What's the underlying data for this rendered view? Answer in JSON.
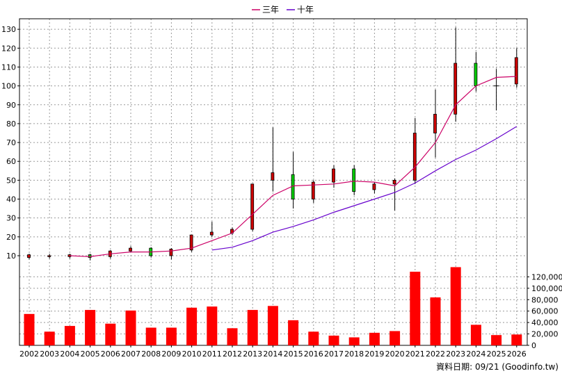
{
  "chart_data": {
    "type": "candlestick",
    "legend": {
      "placement": "top-center",
      "items": [
        {
          "name": "三年",
          "color": "#cc0066"
        },
        {
          "name": "十年",
          "color": "#6600cc"
        }
      ]
    },
    "categories": [
      "2002",
      "2003",
      "2004",
      "2005",
      "2006",
      "2007",
      "2008",
      "2009",
      "2010",
      "2011",
      "2012",
      "2013",
      "2014",
      "2015",
      "2016",
      "2017",
      "2018",
      "2019",
      "2020",
      "2021",
      "2022",
      "2023",
      "2024",
      "2025",
      "2026"
    ],
    "price_axis": {
      "ylim": [
        3,
        133
      ],
      "ticks": [
        10,
        20,
        30,
        40,
        50,
        60,
        70,
        80,
        90,
        100,
        110,
        120,
        130
      ]
    },
    "volume_axis": {
      "ylim": [
        0,
        140000
      ],
      "ticks": [
        0,
        20000,
        40000,
        60000,
        80000,
        100000,
        120000
      ],
      "tick_labels": [
        "0",
        "20,000",
        "40,000",
        "60,000",
        "80,000",
        "100,000",
        "120,000"
      ]
    },
    "ohlc": [
      {
        "o": 9,
        "h": 11,
        "l": 8,
        "c": 10.5
      },
      {
        "o": 9.5,
        "h": 11,
        "l": 8.5,
        "c": 10
      },
      {
        "o": 9.5,
        "h": 11,
        "l": 8.5,
        "c": 10.5
      },
      {
        "o": 10.5,
        "h": 11,
        "l": 7.5,
        "c": 9
      },
      {
        "o": 9.5,
        "h": 13,
        "l": 8.5,
        "c": 12.5
      },
      {
        "o": 12.5,
        "h": 15,
        "l": 12,
        "c": 14
      },
      {
        "o": 14,
        "h": 14.5,
        "l": 9,
        "c": 10
      },
      {
        "o": 10,
        "h": 14,
        "l": 8,
        "c": 13.5
      },
      {
        "o": 13,
        "h": 21,
        "l": 12,
        "c": 21
      },
      {
        "o": 21,
        "h": 28,
        "l": 20,
        "c": 22.5
      },
      {
        "o": 22,
        "h": 25,
        "l": 21,
        "c": 24
      },
      {
        "o": 24,
        "h": 48,
        "l": 23,
        "c": 48
      },
      {
        "o": 50,
        "h": 78,
        "l": 44,
        "c": 54
      },
      {
        "o": 53,
        "h": 65,
        "l": 35,
        "c": 40
      },
      {
        "o": 40,
        "h": 50,
        "l": 38,
        "c": 49
      },
      {
        "o": 49,
        "h": 58,
        "l": 46,
        "c": 56
      },
      {
        "o": 56,
        "h": 58,
        "l": 42,
        "c": 44
      },
      {
        "o": 45,
        "h": 49,
        "l": 43,
        "c": 48
      },
      {
        "o": 48,
        "h": 51,
        "l": 34,
        "c": 50
      },
      {
        "o": 50,
        "h": 83,
        "l": 48,
        "c": 75
      },
      {
        "o": 75,
        "h": 98,
        "l": 62,
        "c": 85
      },
      {
        "o": 85,
        "h": 131,
        "l": 81,
        "c": 112
      },
      {
        "o": 112,
        "h": 118,
        "l": 97,
        "c": 100
      },
      {
        "o": 100,
        "h": 109,
        "l": 87,
        "c": 100
      },
      {
        "o": 101,
        "h": 120,
        "l": 99,
        "c": 115
      }
    ],
    "series": [
      {
        "name": "三年",
        "values": [
          null,
          null,
          10,
          9.5,
          11,
          12,
          12,
          12.5,
          14,
          18,
          22,
          32,
          42,
          47,
          47.5,
          48,
          49.5,
          49,
          47,
          57,
          70,
          90,
          100,
          104.5,
          105
        ]
      },
      {
        "name": "十年",
        "values": [
          null,
          null,
          null,
          null,
          null,
          null,
          null,
          null,
          null,
          13,
          14.5,
          18,
          22.5,
          25.5,
          29,
          33,
          36.5,
          40,
          43.5,
          48.5,
          55,
          61,
          66,
          72,
          78.5
        ]
      }
    ],
    "volume": [
      55000,
      24000,
      34000,
      62000,
      38000,
      61000,
      31000,
      31000,
      66000,
      68000,
      30000,
      62000,
      69000,
      44000,
      24000,
      17000,
      14000,
      22000,
      25000,
      129000,
      84000,
      137000,
      36000,
      18000,
      19000
    ],
    "up_color": "#cc0000",
    "down_color": "#00cc00",
    "volume_color": "#ff0000",
    "footer": "資料日期: 09/21  (Goodinfo.tw)"
  }
}
